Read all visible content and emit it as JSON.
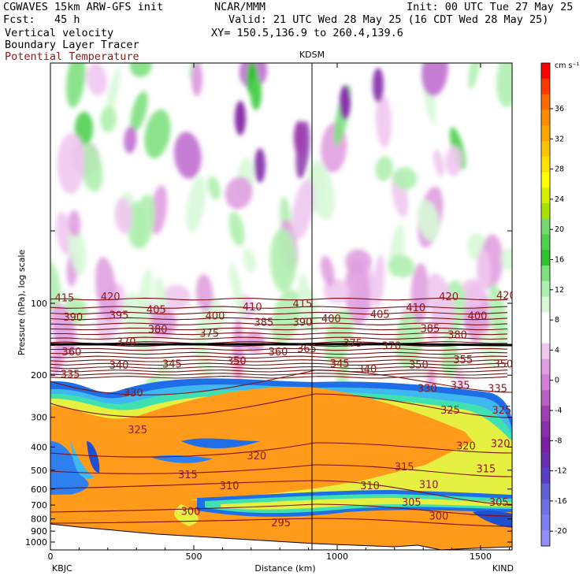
{
  "header": {
    "model": "CGWAVES 15km ARW-GFS init",
    "fcst": "Fcst:   45 h",
    "org": "NCAR/MMM",
    "init": "Init: 00 UTC Tue 27 May 25",
    "valid": "Valid: 21 UTC Wed 28 May 25 (16 CDT Wed 28 May 25)",
    "xy": "XY= 150.5,136.9 to 260.4,139.6",
    "fields": [
      "Vertical velocity",
      "Boundary Layer Tracer",
      "Potential Temperature"
    ]
  },
  "chart_data": {
    "type": "heatmap",
    "title": "",
    "xlabel": "Distance (km)",
    "ylabel": "Pressure (hPa), log scale",
    "xlim": [
      0,
      1610
    ],
    "xticks": [
      "0",
      "500",
      "1000",
      "1500"
    ],
    "yticks": [
      "100",
      "200",
      "300",
      "400",
      "500",
      "600",
      "700",
      "800",
      "900",
      "1000"
    ],
    "endpoints": {
      "left": "KBJC",
      "right": "KIND"
    },
    "marker": {
      "label": "KDSM",
      "distance": 920
    },
    "colorbar": {
      "unit": "cm s⁻¹",
      "labels": [
        "36",
        "32",
        "28",
        "24",
        "20",
        "16",
        "12",
        "8",
        "4",
        "0",
        "-4",
        "-8",
        "-12",
        "-16",
        "-20"
      ],
      "colors": [
        "#ff0000",
        "#ff3a00",
        "#ff6a00",
        "#ff8c00",
        "#ffa500",
        "#ffc400",
        "#ffe100",
        "#ffff00",
        "#d8f000",
        "#a8e000",
        "#78d870",
        "#50d050",
        "#30c030",
        "#80e080",
        "#b0f0b0",
        "#d8f8d8",
        "#ffffff",
        "#ffffff",
        "#f0c8f0",
        "#e0a0e0",
        "#d080d8",
        "#b860c0",
        "#a040b0",
        "#8830a8",
        "#7a20a0",
        "#6a30b0",
        "#5a40c0",
        "#6060d0",
        "#7070e0",
        "#8080f0",
        "#9090f8"
      ]
    },
    "theta_labels": [
      {
        "text": "415",
        "x": 15,
        "p": 98
      },
      {
        "text": "420",
        "x": 175,
        "p": 97
      },
      {
        "text": "415",
        "x": 845,
        "p": 104
      },
      {
        "text": "420",
        "x": 1355,
        "p": 97
      },
      {
        "text": "420",
        "x": 1555,
        "p": 96
      },
      {
        "text": "390",
        "x": 45,
        "p": 118
      },
      {
        "text": "395",
        "x": 205,
        "p": 116
      },
      {
        "text": "405",
        "x": 335,
        "p": 110
      },
      {
        "text": "400",
        "x": 540,
        "p": 117
      },
      {
        "text": "410",
        "x": 670,
        "p": 107
      },
      {
        "text": "385",
        "x": 710,
        "p": 124
      },
      {
        "text": "390",
        "x": 845,
        "p": 124
      },
      {
        "text": "400",
        "x": 945,
        "p": 120
      },
      {
        "text": "405",
        "x": 1115,
        "p": 115
      },
      {
        "text": "410",
        "x": 1240,
        "p": 108
      },
      {
        "text": "400",
        "x": 1455,
        "p": 117
      },
      {
        "text": "380",
        "x": 340,
        "p": 133
      },
      {
        "text": "375",
        "x": 520,
        "p": 138
      },
      {
        "text": "360",
        "x": 40,
        "p": 165
      },
      {
        "text": "370",
        "x": 230,
        "p": 150
      },
      {
        "text": "360",
        "x": 760,
        "p": 165
      },
      {
        "text": "365",
        "x": 860,
        "p": 160
      },
      {
        "text": "375",
        "x": 1020,
        "p": 152
      },
      {
        "text": "370",
        "x": 1155,
        "p": 156
      },
      {
        "text": "385",
        "x": 1290,
        "p": 132
      },
      {
        "text": "380",
        "x": 1385,
        "p": 140
      },
      {
        "text": "340",
        "x": 205,
        "p": 188
      },
      {
        "text": "345",
        "x": 390,
        "p": 186
      },
      {
        "text": "350",
        "x": 615,
        "p": 180
      },
      {
        "text": "345",
        "x": 975,
        "p": 185
      },
      {
        "text": "340",
        "x": 1070,
        "p": 195
      },
      {
        "text": "350",
        "x": 1250,
        "p": 187
      },
      {
        "text": "355",
        "x": 1405,
        "p": 178
      },
      {
        "text": "350",
        "x": 1545,
        "p": 186
      },
      {
        "text": "335",
        "x": 35,
        "p": 205
      },
      {
        "text": "330",
        "x": 255,
        "p": 245
      },
      {
        "text": "330",
        "x": 1280,
        "p": 235
      },
      {
        "text": "335",
        "x": 1395,
        "p": 228
      },
      {
        "text": "335",
        "x": 1525,
        "p": 235
      },
      {
        "text": "325",
        "x": 270,
        "p": 350
      },
      {
        "text": "325",
        "x": 1360,
        "p": 290
      },
      {
        "text": "325",
        "x": 1540,
        "p": 290
      },
      {
        "text": "320",
        "x": 685,
        "p": 450
      },
      {
        "text": "320",
        "x": 1415,
        "p": 410
      },
      {
        "text": "320",
        "x": 1535,
        "p": 400
      },
      {
        "text": "315",
        "x": 445,
        "p": 540
      },
      {
        "text": "315",
        "x": 1200,
        "p": 500
      },
      {
        "text": "315",
        "x": 1485,
        "p": 510
      },
      {
        "text": "310",
        "x": 590,
        "p": 600
      },
      {
        "text": "310",
        "x": 1080,
        "p": 600
      },
      {
        "text": "310",
        "x": 1285,
        "p": 595
      },
      {
        "text": "305",
        "x": 1225,
        "p": 705
      },
      {
        "text": "305",
        "x": 1530,
        "p": 705
      },
      {
        "text": "300",
        "x": 455,
        "p": 770
      },
      {
        "text": "300",
        "x": 1320,
        "p": 805
      },
      {
        "text": "295",
        "x": 770,
        "p": 860
      }
    ]
  }
}
